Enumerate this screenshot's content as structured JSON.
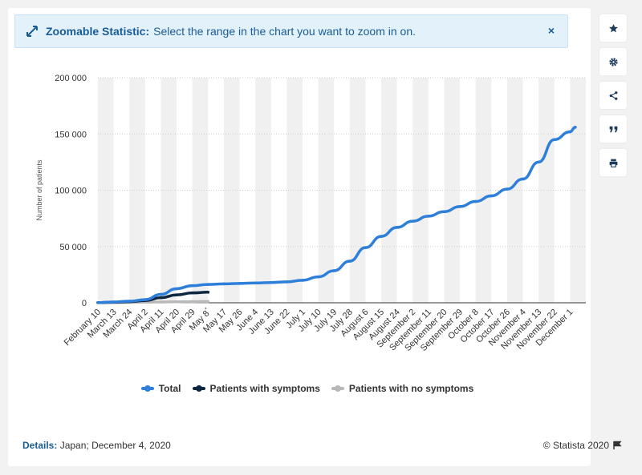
{
  "banner": {
    "title": "Zoomable Statistic:",
    "text": "Select the range in the chart you want to zoom in on.",
    "close_label": "×"
  },
  "sidebar": {
    "buttons": [
      {
        "name": "star-icon"
      },
      {
        "name": "gear-icon"
      },
      {
        "name": "share-icon"
      },
      {
        "name": "quote-icon"
      },
      {
        "name": "print-icon"
      }
    ]
  },
  "footer": {
    "details_label": "Details:",
    "details_text": "Japan; December 4, 2020",
    "credit": "© Statista 2020"
  },
  "colors": {
    "total": "#2e7fd9",
    "with_symptoms": "#0d2740",
    "no_symptoms": "#b8b8b8",
    "band": "#f0f0f0"
  },
  "chart_data": {
    "type": "line",
    "ylabel": "Number of patients",
    "ylim": [
      0,
      200000
    ],
    "yticks": [
      0,
      50000,
      100000,
      150000,
      200000
    ],
    "ytick_labels": [
      "0",
      "50 000",
      "100 000",
      "150 000",
      "200 000"
    ],
    "x_labels": [
      "February 10",
      "March 13",
      "March 24",
      "April 2",
      "April 11",
      "April 20",
      "April 29",
      "May 8",
      "May 17",
      "May 26",
      "June 4",
      "June 13",
      "June 22",
      "July 1",
      "July 10",
      "July 19",
      "July 28",
      "August 6",
      "August 15",
      "August 24",
      "September 2",
      "September 11",
      "September 20",
      "September 29",
      "October 8",
      "October 17",
      "October 26",
      "November 4",
      "November 13",
      "November 22",
      "December 1"
    ],
    "x_label_note": "May 8 is marked with a superscript",
    "grid": true,
    "legend_position": "bottom",
    "series": [
      {
        "name": "Total",
        "color": "#2e7fd9",
        "x": [
          "February 10",
          "March 13",
          "March 24",
          "April 2",
          "April 11",
          "April 20",
          "April 29",
          "May 8",
          "May 17",
          "May 26",
          "June 4",
          "June 13",
          "June 22",
          "July 1",
          "July 10",
          "July 19",
          "July 28",
          "August 6",
          "August 15",
          "August 24",
          "September 2",
          "September 11",
          "September 20",
          "September 29",
          "October 8",
          "October 17",
          "October 26",
          "November 4",
          "November 13",
          "November 22",
          "December 1",
          "December 4"
        ],
        "values": [
          200,
          700,
          1400,
          2800,
          7500,
          12500,
          15200,
          16300,
          16800,
          17200,
          17600,
          18000,
          18600,
          20000,
          23000,
          28500,
          37000,
          49000,
          59000,
          67000,
          72500,
          77000,
          81000,
          85500,
          90000,
          95000,
          101000,
          110000,
          125000,
          145000,
          152000,
          156000
        ]
      },
      {
        "name": "Patients with symptoms",
        "color": "#0d2740",
        "x": [
          "February 10",
          "March 13",
          "March 24",
          "April 2",
          "April 11",
          "April 20",
          "April 29",
          "May 8"
        ],
        "values": [
          150,
          500,
          1000,
          2000,
          4500,
          7000,
          8800,
          9400
        ]
      },
      {
        "name": "Patients with no symptoms",
        "color": "#b8b8b8",
        "x": [
          "February 10",
          "March 13",
          "March 24",
          "April 2",
          "April 11",
          "April 20",
          "April 29",
          "May 8"
        ],
        "values": [
          50,
          200,
          350,
          500,
          700,
          900,
          1000,
          1100
        ]
      }
    ]
  }
}
